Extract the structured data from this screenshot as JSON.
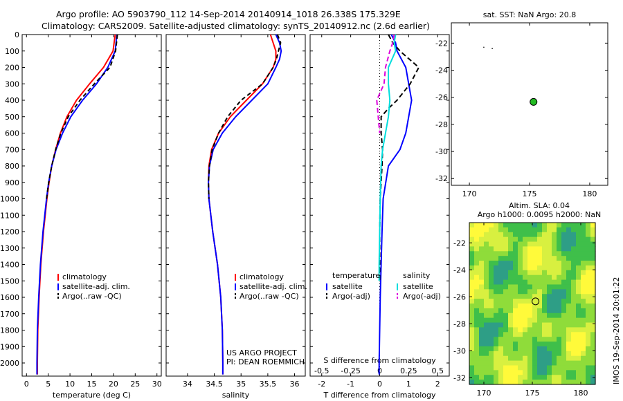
{
  "header": {
    "line1": "Argo profile: AO 5903790_112 14-Sep-2014 20140914_1018 26.338S 175.329E",
    "line2": "Climatology: CARS2009. Satellite-adjusted climatology: synTS_20140912.nc (2.6d earlier)"
  },
  "side_label": "IMOS 19-Sep-2014 20:01:22",
  "chart_data": [
    {
      "type": "line",
      "xlabel": "temperature (deg C)",
      "xlim": [
        -1,
        31
      ],
      "ylim": [
        2080,
        0
      ],
      "xticks": [
        0,
        5,
        10,
        15,
        20,
        25,
        30
      ],
      "yticks": [
        0,
        100,
        200,
        300,
        400,
        500,
        600,
        700,
        800,
        900,
        1000,
        1100,
        1200,
        1300,
        1400,
        1500,
        1600,
        1700,
        1800,
        1900,
        2000
      ],
      "legend": [
        "climatology",
        "satellite-adj. clim.",
        "Argo(..raw -QC)"
      ],
      "series": [
        {
          "name": "climatology",
          "color": "#ff0000",
          "dash": "",
          "depth": [
            0,
            100,
            200,
            300,
            400,
            500,
            600,
            700,
            800,
            900,
            1000,
            1200,
            1400,
            1600,
            1800,
            2000,
            2070
          ],
          "values": [
            20.4,
            19.9,
            17.7,
            14.5,
            11.5,
            9.3,
            7.8,
            6.7,
            5.8,
            5.2,
            4.7,
            3.9,
            3.3,
            2.9,
            2.6,
            2.5,
            2.5
          ]
        },
        {
          "name": "satellite-adj. clim.",
          "color": "#0000ff",
          "dash": "",
          "depth": [
            0,
            100,
            200,
            300,
            400,
            500,
            600,
            700,
            800,
            900,
            1000,
            1200,
            1400,
            1600,
            1800,
            2000,
            2070
          ],
          "values": [
            20.8,
            20.4,
            18.7,
            16.1,
            12.9,
            10.2,
            8.3,
            6.8,
            5.8,
            5.1,
            4.6,
            3.8,
            3.2,
            2.8,
            2.5,
            2.4,
            2.4
          ]
        },
        {
          "name": "Argo(..raw -QC)",
          "color": "#000000",
          "dash": "6,4",
          "depth": [
            0,
            100,
            200,
            300,
            400,
            500,
            600,
            700,
            800,
            900,
            1000
          ],
          "values": [
            20.9,
            20.5,
            19.2,
            15.6,
            12.3,
            9.6,
            7.9,
            6.7,
            5.8,
            5.1,
            4.6
          ]
        }
      ]
    },
    {
      "type": "line",
      "xlabel": "salinity",
      "xlim": [
        33.6,
        36.2
      ],
      "ylim": [
        2080,
        0
      ],
      "xticks": [
        34,
        34.5,
        35,
        35.5,
        36
      ],
      "xticklabels": [
        "34",
        "34.5",
        "35",
        "35.5",
        "36"
      ],
      "legend": [
        "climatology",
        "satellite-adj. clim.",
        "Argo(..raw -QC)"
      ],
      "annotation": [
        "US ARGO PROJECT",
        "PI: DEAN ROEMMICH"
      ],
      "series": [
        {
          "name": "climatology",
          "color": "#ff0000",
          "dash": "",
          "depth": [
            0,
            50,
            100,
            150,
            200,
            300,
            400,
            500,
            600,
            700,
            800,
            900,
            1000,
            1200,
            1400,
            1600,
            1800,
            2000,
            2070
          ],
          "values": [
            35.55,
            35.6,
            35.65,
            35.65,
            35.6,
            35.4,
            35.1,
            34.8,
            34.58,
            34.45,
            34.4,
            34.39,
            34.4,
            34.47,
            34.56,
            34.62,
            34.65,
            34.66,
            34.66
          ]
        },
        {
          "name": "satellite-adj. clim.",
          "color": "#0000ff",
          "dash": "",
          "depth": [
            0,
            50,
            100,
            150,
            200,
            300,
            400,
            500,
            600,
            700,
            800,
            900,
            1000,
            1200,
            1400,
            1600,
            1800,
            2000,
            2070
          ],
          "values": [
            35.65,
            35.72,
            35.75,
            35.72,
            35.65,
            35.5,
            35.2,
            34.9,
            34.65,
            34.48,
            34.41,
            34.39,
            34.4,
            34.47,
            34.56,
            34.62,
            34.65,
            34.66,
            34.66
          ]
        },
        {
          "name": "Argo(..raw -QC)",
          "color": "#000000",
          "dash": "6,4",
          "depth": [
            0,
            50,
            100,
            150,
            200,
            300,
            400,
            500,
            600,
            700,
            800,
            900,
            1000
          ],
          "values": [
            35.68,
            35.74,
            35.7,
            35.66,
            35.6,
            35.4,
            35.0,
            34.75,
            34.58,
            34.46,
            34.41,
            34.39,
            34.4
          ]
        }
      ]
    },
    {
      "type": "line",
      "xlabel": "T difference from climatology",
      "xlabel_top": "S difference from climatology",
      "xlim": [
        -2.4,
        2.4
      ],
      "ylim": [
        2080,
        0
      ],
      "xticks": [
        -2,
        -1,
        0,
        1,
        2
      ],
      "topticks": [
        -0.5,
        -0.25,
        0,
        0.25,
        0.5
      ],
      "legend_titles": [
        "temperature",
        "salinity"
      ],
      "legend": [
        "satellite",
        "Argo(-adj)",
        "satellite",
        "Argo(-adj)"
      ],
      "series": [
        {
          "name": "satellite",
          "group": "temperature",
          "color": "#0000ff",
          "dash": "",
          "depth": [
            0,
            50,
            100,
            200,
            300,
            400,
            500,
            600,
            700,
            800,
            1000,
            1200,
            1400,
            1600,
            1800,
            2000,
            2070
          ],
          "values": [
            0.4,
            0.55,
            0.6,
            0.9,
            1.0,
            1.1,
            1.0,
            0.9,
            0.7,
            0.3,
            0.12,
            0.08,
            0.05,
            0.02,
            0.0,
            -0.02,
            -0.02
          ]
        },
        {
          "name": "Argo(-adj)",
          "group": "temperature",
          "color": "#000000",
          "dash": "7,4",
          "depth": [
            0,
            50,
            100,
            200,
            300,
            400,
            450,
            500,
            600,
            700,
            800,
            1000,
            1200,
            1400,
            1500
          ],
          "values": [
            0.3,
            0.45,
            0.7,
            1.35,
            1.05,
            0.6,
            0.3,
            0.05,
            0.05,
            0.1,
            0.08,
            0.02,
            0.0,
            0.0,
            0.0
          ]
        },
        {
          "name": "satellite",
          "group": "salinity",
          "color": "#00dddd",
          "dash": "",
          "depth": [
            0,
            50,
            100,
            200,
            300,
            400,
            500,
            600,
            700,
            800,
            1000,
            1200,
            1400,
            1500
          ],
          "values": [
            0.55,
            0.5,
            0.55,
            0.3,
            0.3,
            0.35,
            0.3,
            0.2,
            0.1,
            0.05,
            0.02,
            0.0,
            -0.02,
            -0.02
          ]
        },
        {
          "name": "Argo(-adj)",
          "group": "salinity",
          "color": "#dd00dd",
          "dash": "7,4",
          "depth": [
            0,
            50,
            100,
            200,
            300,
            400,
            500,
            600
          ],
          "values": [
            0.5,
            0.45,
            0.35,
            0.2,
            0.15,
            -0.1,
            -0.05,
            0.0
          ]
        }
      ]
    },
    {
      "type": "scatter",
      "title": "sat. SST: NaN Argo: 20.8",
      "xlim": [
        168.5,
        181.5
      ],
      "ylim": [
        -32.5,
        -20.5
      ],
      "xticks": [
        170,
        175,
        180
      ],
      "yticks": [
        -22,
        -24,
        -26,
        -28,
        -30,
        -32
      ],
      "points": [
        {
          "x": 175.33,
          "y": -26.34,
          "color": "#22bb22"
        }
      ]
    },
    {
      "type": "heatmap",
      "title": [
        "Altim. SLA: 0.04",
        "Argo h1000: 0.0095 h2000: NaN"
      ],
      "xlim": [
        168.5,
        181.5
      ],
      "ylim": [
        -32.5,
        -20.5
      ],
      "xticks": [
        170,
        175,
        180
      ],
      "yticks": [
        -22,
        -24,
        -26,
        -28,
        -30,
        -32
      ],
      "colormap": [
        "#2e9e86",
        "#3fbf4a",
        "#8fdc3a",
        "#d8f040",
        "#fffa3a"
      ],
      "points": [
        {
          "x": 175.33,
          "y": -26.34,
          "color": "none"
        }
      ]
    }
  ]
}
